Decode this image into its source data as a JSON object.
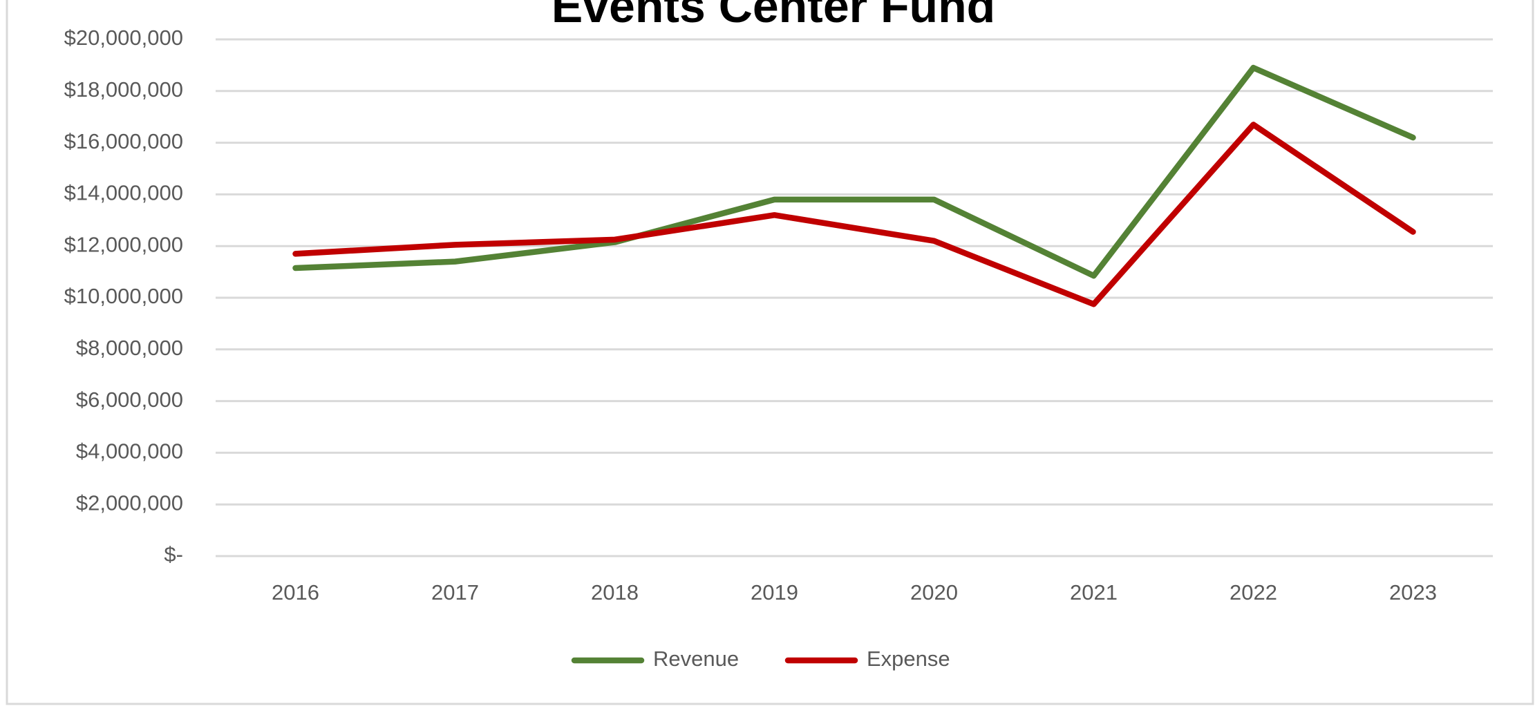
{
  "chart_data": {
    "type": "line",
    "title": "Events Center Fund",
    "categories": [
      "2016",
      "2017",
      "2018",
      "2019",
      "2020",
      "2021",
      "2022",
      "2023"
    ],
    "series": [
      {
        "name": "Revenue",
        "color": "#548235",
        "values": [
          11150000,
          11400000,
          12150000,
          13800000,
          13800000,
          10850000,
          18900000,
          16200000
        ]
      },
      {
        "name": "Expense",
        "color": "#c00000",
        "values": [
          11700000,
          12050000,
          12250000,
          13200000,
          12200000,
          9750000,
          16700000,
          12550000
        ]
      }
    ],
    "ylim": [
      0,
      20000000
    ],
    "yticks": [
      {
        "value": 0,
        "label": "$-"
      },
      {
        "value": 2000000,
        "label": "$2,000,000"
      },
      {
        "value": 4000000,
        "label": "$4,000,000"
      },
      {
        "value": 6000000,
        "label": "$6,000,000"
      },
      {
        "value": 8000000,
        "label": "$8,000,000"
      },
      {
        "value": 10000000,
        "label": "$10,000,000"
      },
      {
        "value": 12000000,
        "label": "$12,000,000"
      },
      {
        "value": 14000000,
        "label": "$14,000,000"
      },
      {
        "value": 16000000,
        "label": "$16,000,000"
      },
      {
        "value": 18000000,
        "label": "$18,000,000"
      },
      {
        "value": 20000000,
        "label": "$20,000,000"
      }
    ],
    "grid": true,
    "legend": "bottom"
  }
}
